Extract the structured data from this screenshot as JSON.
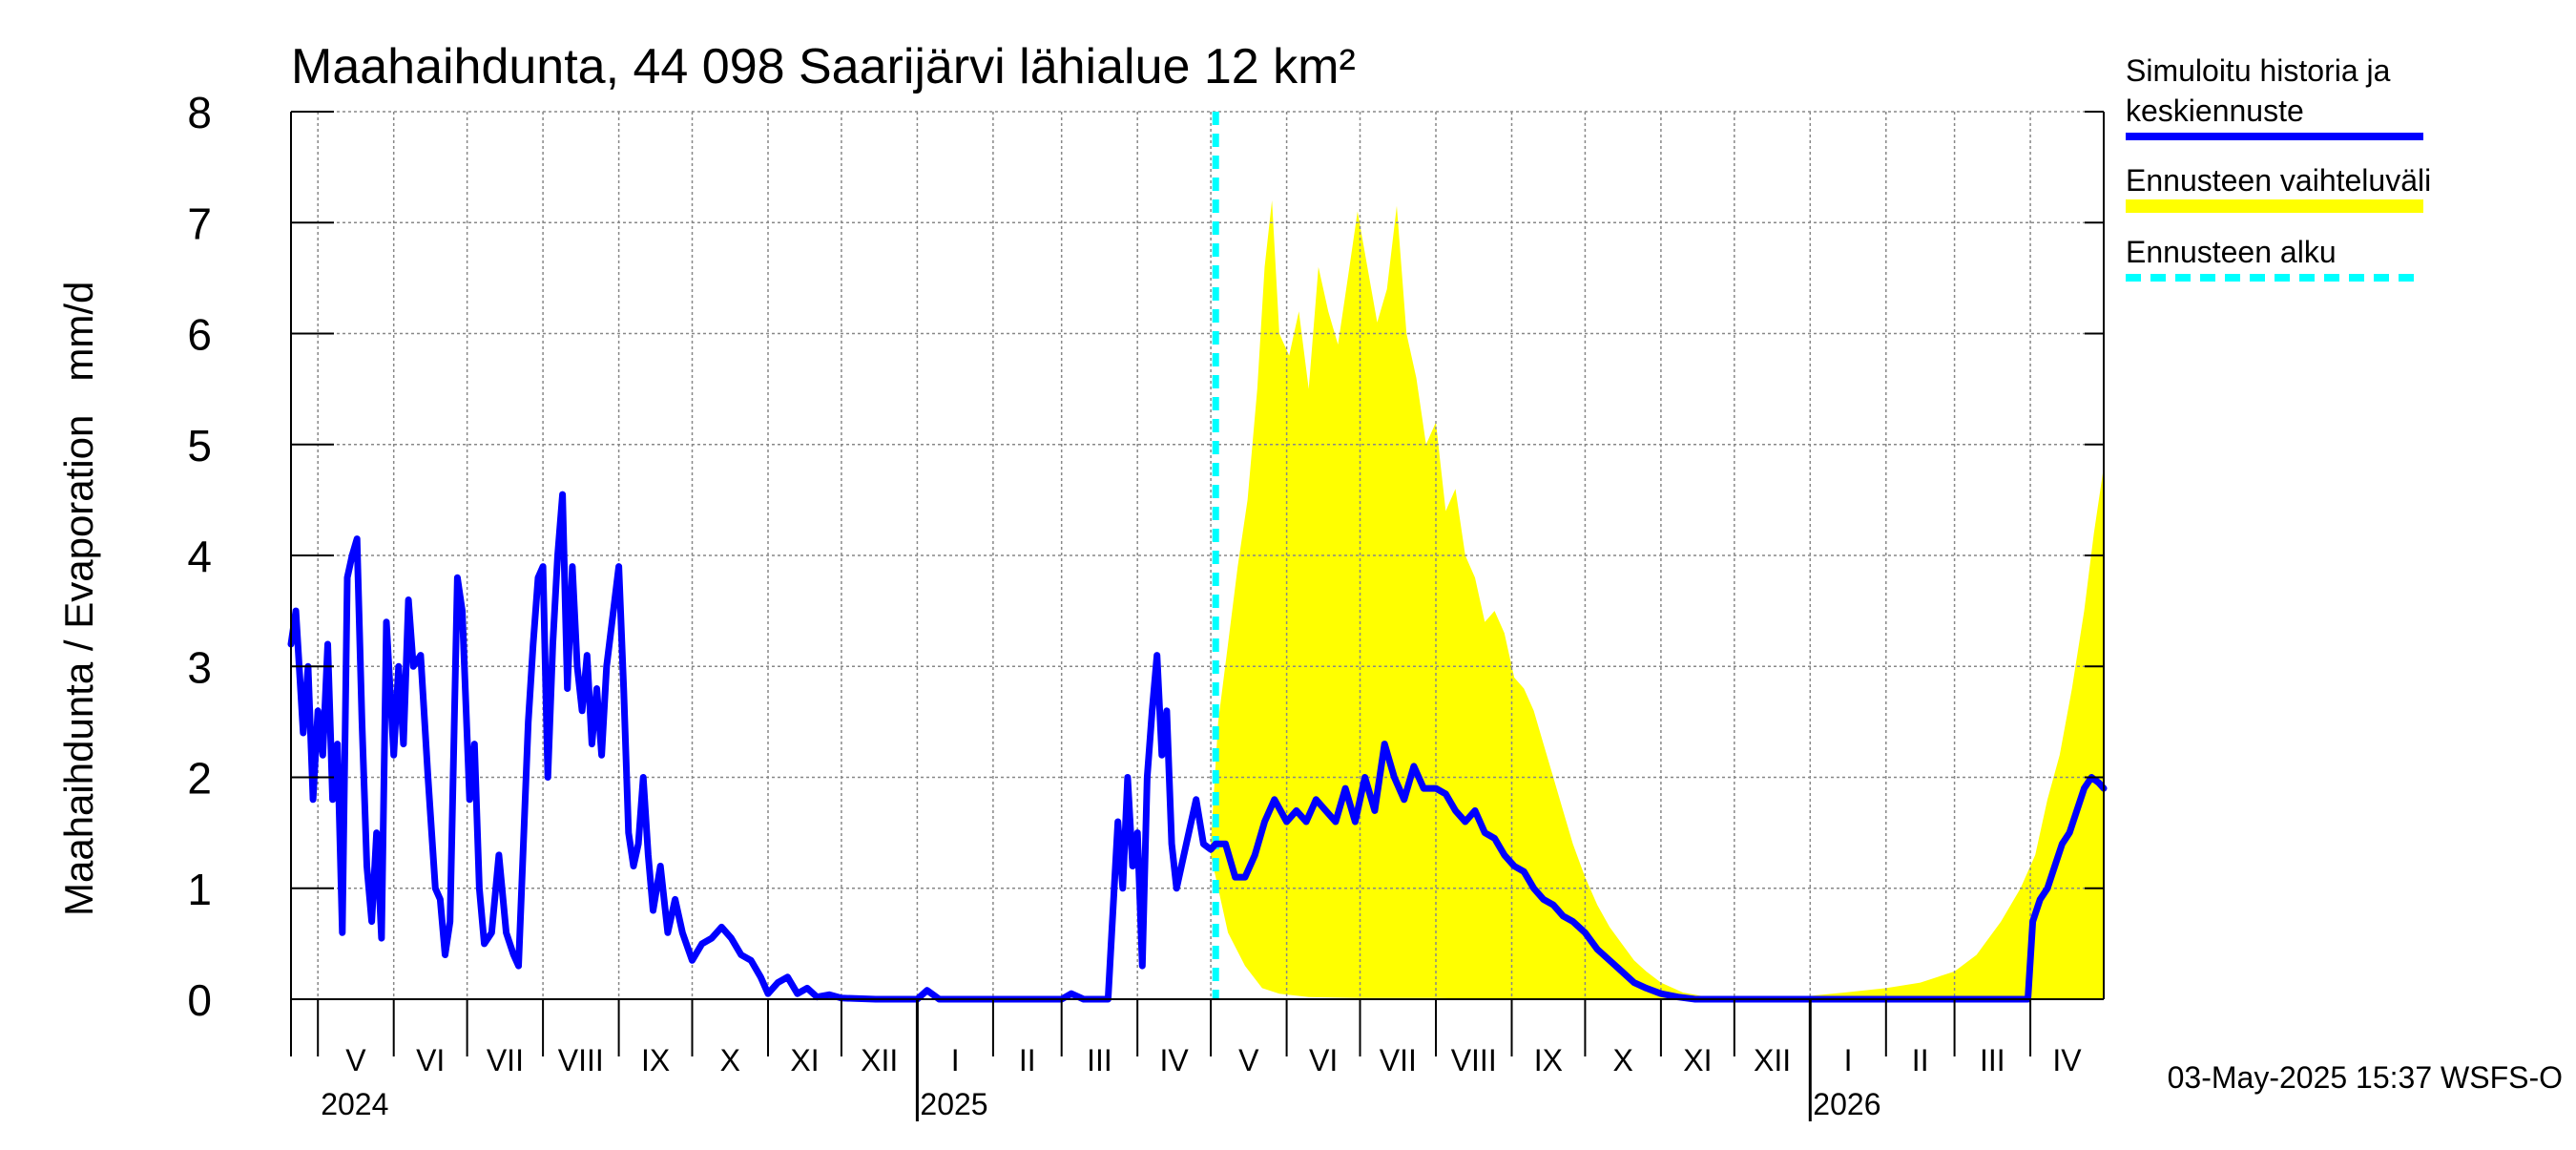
{
  "chart_data": {
    "type": "line",
    "title": "Maahaihdunta, 44 098 Saarijärvi lähialue 12 km²",
    "ylabel": "Maahaihdunta / Evaporation   mm/d",
    "ylim": [
      0,
      8
    ],
    "yticks": [
      "0",
      "1",
      "2",
      "3",
      "4",
      "5",
      "6",
      "7",
      "8"
    ],
    "xlim": [
      "2024-04-20",
      "2026-05-01"
    ],
    "months": [
      {
        "label": "V",
        "start": "2024-05-01"
      },
      {
        "label": "VI",
        "start": "2024-06-01"
      },
      {
        "label": "VII",
        "start": "2024-07-01"
      },
      {
        "label": "VIII",
        "start": "2024-08-01"
      },
      {
        "label": "IX",
        "start": "2024-09-01"
      },
      {
        "label": "X",
        "start": "2024-10-01"
      },
      {
        "label": "XI",
        "start": "2024-11-01"
      },
      {
        "label": "XII",
        "start": "2024-12-01"
      },
      {
        "label": "I",
        "start": "2025-01-01"
      },
      {
        "label": "II",
        "start": "2025-02-01"
      },
      {
        "label": "III",
        "start": "2025-03-01"
      },
      {
        "label": "IV",
        "start": "2025-04-01"
      },
      {
        "label": "V",
        "start": "2025-05-01"
      },
      {
        "label": "VI",
        "start": "2025-06-01"
      },
      {
        "label": "VII",
        "start": "2025-07-01"
      },
      {
        "label": "VIII",
        "start": "2025-08-01"
      },
      {
        "label": "IX",
        "start": "2025-09-01"
      },
      {
        "label": "X",
        "start": "2025-10-01"
      },
      {
        "label": "XI",
        "start": "2025-11-01"
      },
      {
        "label": "XII",
        "start": "2025-12-01"
      },
      {
        "label": "I",
        "start": "2026-01-01"
      },
      {
        "label": "II",
        "start": "2026-02-01"
      },
      {
        "label": "III",
        "start": "2026-03-01"
      },
      {
        "label": "IV",
        "start": "2026-04-01"
      }
    ],
    "years": [
      {
        "label": "2024",
        "start": "2024-05-01"
      },
      {
        "label": "2025",
        "start": "2025-01-01"
      },
      {
        "label": "2026",
        "start": "2026-01-01"
      }
    ],
    "forecast_start": "2025-05-03",
    "series": [
      {
        "name": "Simuloitu historia ja keskiennuste",
        "color": "#0000ff",
        "points": [
          [
            "2024-04-20",
            3.2
          ],
          [
            "2024-04-22",
            3.5
          ],
          [
            "2024-04-25",
            2.4
          ],
          [
            "2024-04-27",
            3.0
          ],
          [
            "2024-04-29",
            1.8
          ],
          [
            "2024-05-01",
            2.6
          ],
          [
            "2024-05-03",
            2.2
          ],
          [
            "2024-05-05",
            3.2
          ],
          [
            "2024-05-07",
            1.8
          ],
          [
            "2024-05-09",
            2.3
          ],
          [
            "2024-05-11",
            0.6
          ],
          [
            "2024-05-13",
            3.8
          ],
          [
            "2024-05-15",
            4.0
          ],
          [
            "2024-05-17",
            4.15
          ],
          [
            "2024-05-19",
            2.5
          ],
          [
            "2024-05-21",
            1.2
          ],
          [
            "2024-05-23",
            0.7
          ],
          [
            "2024-05-25",
            1.5
          ],
          [
            "2024-05-27",
            0.55
          ],
          [
            "2024-05-29",
            3.4
          ],
          [
            "2024-06-01",
            2.2
          ],
          [
            "2024-06-03",
            3.0
          ],
          [
            "2024-06-05",
            2.3
          ],
          [
            "2024-06-07",
            3.6
          ],
          [
            "2024-06-09",
            3.0
          ],
          [
            "2024-06-12",
            3.1
          ],
          [
            "2024-06-15",
            2.0
          ],
          [
            "2024-06-18",
            1.0
          ],
          [
            "2024-06-20",
            0.9
          ],
          [
            "2024-06-22",
            0.4
          ],
          [
            "2024-06-24",
            0.7
          ],
          [
            "2024-06-27",
            3.8
          ],
          [
            "2024-06-29",
            3.5
          ],
          [
            "2024-07-02",
            1.8
          ],
          [
            "2024-07-04",
            2.3
          ],
          [
            "2024-07-06",
            1.0
          ],
          [
            "2024-07-08",
            0.5
          ],
          [
            "2024-07-11",
            0.6
          ],
          [
            "2024-07-14",
            1.3
          ],
          [
            "2024-07-17",
            0.6
          ],
          [
            "2024-07-20",
            0.4
          ],
          [
            "2024-07-22",
            0.3
          ],
          [
            "2024-07-24",
            1.4
          ],
          [
            "2024-07-26",
            2.5
          ],
          [
            "2024-07-28",
            3.2
          ],
          [
            "2024-07-30",
            3.8
          ],
          [
            "2024-08-01",
            3.9
          ],
          [
            "2024-08-03",
            2.0
          ],
          [
            "2024-08-05",
            3.2
          ],
          [
            "2024-08-07",
            4.0
          ],
          [
            "2024-08-09",
            4.55
          ],
          [
            "2024-08-11",
            2.8
          ],
          [
            "2024-08-13",
            3.9
          ],
          [
            "2024-08-15",
            3.0
          ],
          [
            "2024-08-17",
            2.6
          ],
          [
            "2024-08-19",
            3.1
          ],
          [
            "2024-08-21",
            2.3
          ],
          [
            "2024-08-23",
            2.8
          ],
          [
            "2024-08-25",
            2.2
          ],
          [
            "2024-08-27",
            3.0
          ],
          [
            "2024-09-01",
            3.9
          ],
          [
            "2024-09-03",
            2.8
          ],
          [
            "2024-09-05",
            1.5
          ],
          [
            "2024-09-07",
            1.2
          ],
          [
            "2024-09-09",
            1.4
          ],
          [
            "2024-09-11",
            2.0
          ],
          [
            "2024-09-13",
            1.3
          ],
          [
            "2024-09-15",
            0.8
          ],
          [
            "2024-09-18",
            1.2
          ],
          [
            "2024-09-21",
            0.6
          ],
          [
            "2024-09-24",
            0.9
          ],
          [
            "2024-09-27",
            0.6
          ],
          [
            "2024-10-01",
            0.35
          ],
          [
            "2024-10-05",
            0.5
          ],
          [
            "2024-10-09",
            0.55
          ],
          [
            "2024-10-13",
            0.65
          ],
          [
            "2024-10-17",
            0.55
          ],
          [
            "2024-10-21",
            0.4
          ],
          [
            "2024-10-25",
            0.35
          ],
          [
            "2024-10-29",
            0.2
          ],
          [
            "2024-11-01",
            0.05
          ],
          [
            "2024-11-05",
            0.15
          ],
          [
            "2024-11-09",
            0.2
          ],
          [
            "2024-11-13",
            0.05
          ],
          [
            "2024-11-17",
            0.1
          ],
          [
            "2024-11-21",
            0.02
          ],
          [
            "2024-11-26",
            0.04
          ],
          [
            "2024-12-01",
            0.01
          ],
          [
            "2024-12-15",
            0.0
          ],
          [
            "2025-01-01",
            0.0
          ],
          [
            "2025-01-05",
            0.08
          ],
          [
            "2025-01-10",
            0.0
          ],
          [
            "2025-02-01",
            0.0
          ],
          [
            "2025-03-01",
            0.0
          ],
          [
            "2025-03-05",
            0.05
          ],
          [
            "2025-03-10",
            0.0
          ],
          [
            "2025-03-20",
            0.0
          ],
          [
            "2025-03-24",
            1.6
          ],
          [
            "2025-03-26",
            1.0
          ],
          [
            "2025-03-28",
            2.0
          ],
          [
            "2025-03-30",
            1.2
          ],
          [
            "2025-04-01",
            1.5
          ],
          [
            "2025-04-03",
            0.3
          ],
          [
            "2025-04-05",
            2.0
          ],
          [
            "2025-04-07",
            2.6
          ],
          [
            "2025-04-09",
            3.1
          ],
          [
            "2025-04-11",
            2.2
          ],
          [
            "2025-04-13",
            2.6
          ],
          [
            "2025-04-15",
            1.4
          ],
          [
            "2025-04-17",
            1.0
          ],
          [
            "2025-04-19",
            1.2
          ],
          [
            "2025-04-22",
            1.5
          ],
          [
            "2025-04-25",
            1.8
          ],
          [
            "2025-04-28",
            1.4
          ],
          [
            "2025-05-01",
            1.35
          ],
          [
            "2025-05-03",
            1.4
          ],
          [
            "2025-05-07",
            1.4
          ],
          [
            "2025-05-11",
            1.1
          ],
          [
            "2025-05-15",
            1.1
          ],
          [
            "2025-05-19",
            1.3
          ],
          [
            "2025-05-23",
            1.6
          ],
          [
            "2025-05-27",
            1.8
          ],
          [
            "2025-06-01",
            1.6
          ],
          [
            "2025-06-05",
            1.7
          ],
          [
            "2025-06-09",
            1.6
          ],
          [
            "2025-06-13",
            1.8
          ],
          [
            "2025-06-17",
            1.7
          ],
          [
            "2025-06-21",
            1.6
          ],
          [
            "2025-06-25",
            1.9
          ],
          [
            "2025-06-29",
            1.6
          ],
          [
            "2025-07-03",
            2.0
          ],
          [
            "2025-07-07",
            1.7
          ],
          [
            "2025-07-11",
            2.3
          ],
          [
            "2025-07-15",
            2.0
          ],
          [
            "2025-07-19",
            1.8
          ],
          [
            "2025-07-23",
            2.1
          ],
          [
            "2025-07-27",
            1.9
          ],
          [
            "2025-08-01",
            1.9
          ],
          [
            "2025-08-05",
            1.85
          ],
          [
            "2025-08-09",
            1.7
          ],
          [
            "2025-08-13",
            1.6
          ],
          [
            "2025-08-17",
            1.7
          ],
          [
            "2025-08-21",
            1.5
          ],
          [
            "2025-08-25",
            1.45
          ],
          [
            "2025-08-29",
            1.3
          ],
          [
            "2025-09-02",
            1.2
          ],
          [
            "2025-09-06",
            1.15
          ],
          [
            "2025-09-10",
            1.0
          ],
          [
            "2025-09-14",
            0.9
          ],
          [
            "2025-09-18",
            0.85
          ],
          [
            "2025-09-22",
            0.75
          ],
          [
            "2025-09-26",
            0.7
          ],
          [
            "2025-10-01",
            0.6
          ],
          [
            "2025-10-06",
            0.45
          ],
          [
            "2025-10-11",
            0.35
          ],
          [
            "2025-10-16",
            0.25
          ],
          [
            "2025-10-21",
            0.15
          ],
          [
            "2025-10-26",
            0.1
          ],
          [
            "2025-11-01",
            0.05
          ],
          [
            "2025-11-08",
            0.02
          ],
          [
            "2025-11-15",
            0.0
          ],
          [
            "2026-01-01",
            0.0
          ],
          [
            "2026-02-01",
            0.0
          ],
          [
            "2026-03-01",
            0.0
          ],
          [
            "2026-03-31",
            0.0
          ],
          [
            "2026-04-02",
            0.7
          ],
          [
            "2026-04-05",
            0.9
          ],
          [
            "2026-04-08",
            1.0
          ],
          [
            "2026-04-11",
            1.2
          ],
          [
            "2026-04-14",
            1.4
          ],
          [
            "2026-04-17",
            1.5
          ],
          [
            "2026-04-20",
            1.7
          ],
          [
            "2026-04-23",
            1.9
          ],
          [
            "2026-04-26",
            2.0
          ],
          [
            "2026-04-29",
            1.95
          ],
          [
            "2026-05-01",
            1.9
          ]
        ]
      },
      {
        "name": "Ennusteen vaihteluväli",
        "color": "#ffff00",
        "upper": [
          [
            "2025-05-01",
            1.4
          ],
          [
            "2025-05-04",
            2.5
          ],
          [
            "2025-05-08",
            3.2
          ],
          [
            "2025-05-12",
            3.9
          ],
          [
            "2025-05-16",
            4.5
          ],
          [
            "2025-05-20",
            5.5
          ],
          [
            "2025-05-23",
            6.6
          ],
          [
            "2025-05-26",
            7.2
          ],
          [
            "2025-05-29",
            6.0
          ],
          [
            "2025-06-02",
            5.8
          ],
          [
            "2025-06-06",
            6.2
          ],
          [
            "2025-06-10",
            5.5
          ],
          [
            "2025-06-14",
            6.6
          ],
          [
            "2025-06-18",
            6.2
          ],
          [
            "2025-06-22",
            5.9
          ],
          [
            "2025-06-26",
            6.5
          ],
          [
            "2025-06-30",
            7.1
          ],
          [
            "2025-07-04",
            6.6
          ],
          [
            "2025-07-08",
            6.1
          ],
          [
            "2025-07-12",
            6.4
          ],
          [
            "2025-07-16",
            7.15
          ],
          [
            "2025-07-20",
            6.0
          ],
          [
            "2025-07-24",
            5.6
          ],
          [
            "2025-07-28",
            5.0
          ],
          [
            "2025-08-01",
            5.2
          ],
          [
            "2025-08-05",
            4.4
          ],
          [
            "2025-08-09",
            4.6
          ],
          [
            "2025-08-13",
            4.0
          ],
          [
            "2025-08-17",
            3.8
          ],
          [
            "2025-08-21",
            3.4
          ],
          [
            "2025-08-25",
            3.5
          ],
          [
            "2025-08-29",
            3.3
          ],
          [
            "2025-09-02",
            2.9
          ],
          [
            "2025-09-06",
            2.8
          ],
          [
            "2025-09-10",
            2.6
          ],
          [
            "2025-09-14",
            2.3
          ],
          [
            "2025-09-18",
            2.0
          ],
          [
            "2025-09-22",
            1.7
          ],
          [
            "2025-09-26",
            1.4
          ],
          [
            "2025-10-01",
            1.1
          ],
          [
            "2025-10-06",
            0.85
          ],
          [
            "2025-10-11",
            0.65
          ],
          [
            "2025-10-16",
            0.5
          ],
          [
            "2025-10-21",
            0.35
          ],
          [
            "2025-10-26",
            0.25
          ],
          [
            "2025-11-01",
            0.15
          ],
          [
            "2025-11-10",
            0.06
          ],
          [
            "2025-11-20",
            0.02
          ],
          [
            "2025-12-01",
            0.01
          ],
          [
            "2025-12-15",
            0.02
          ],
          [
            "2026-01-01",
            0.03
          ],
          [
            "2026-01-15",
            0.06
          ],
          [
            "2026-02-01",
            0.1
          ],
          [
            "2026-02-15",
            0.15
          ],
          [
            "2026-03-01",
            0.25
          ],
          [
            "2026-03-10",
            0.4
          ],
          [
            "2026-03-20",
            0.7
          ],
          [
            "2026-03-28",
            1.0
          ],
          [
            "2026-04-03",
            1.3
          ],
          [
            "2026-04-08",
            1.8
          ],
          [
            "2026-04-13",
            2.2
          ],
          [
            "2026-04-18",
            2.8
          ],
          [
            "2026-04-23",
            3.5
          ],
          [
            "2026-04-27",
            4.2
          ],
          [
            "2026-05-01",
            4.8
          ]
        ],
        "lower": [
          [
            "2025-05-01",
            1.3
          ],
          [
            "2025-05-08",
            0.6
          ],
          [
            "2025-05-15",
            0.3
          ],
          [
            "2025-05-22",
            0.1
          ],
          [
            "2025-05-29",
            0.05
          ],
          [
            "2025-06-10",
            0.02
          ],
          [
            "2025-07-01",
            0.01
          ],
          [
            "2025-08-01",
            0.01
          ],
          [
            "2025-09-01",
            0.0
          ],
          [
            "2025-10-01",
            0.0
          ],
          [
            "2026-04-01",
            0.0
          ],
          [
            "2026-05-01",
            0.0
          ]
        ]
      },
      {
        "name": "Ennusteen alku",
        "color": "#00ffff"
      }
    ],
    "legend_position": "right",
    "footer": "03-May-2025 15:37 WSFS-O"
  }
}
